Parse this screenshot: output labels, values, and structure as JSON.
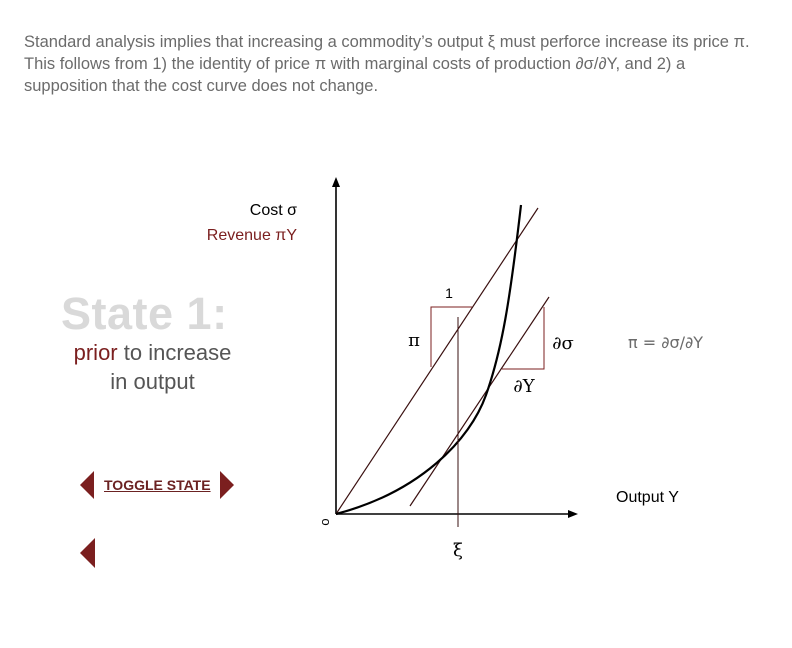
{
  "intro": {
    "text": "Standard analysis implies that increasing a commodity’s output ξ must perforce increase its price π. This follows from 1) the identity of price π with marginal costs of production ∂σ/∂Y, and 2) a supposition that the cost curve does not change."
  },
  "state": {
    "title": "State 1:",
    "desc_accent": "prior",
    "desc_rest_1": " to increase",
    "desc_rest_2": "in output"
  },
  "controls": {
    "toggle_label": "TOGGLE STATE",
    "prev_icon": "triangle-left-icon",
    "next_icon": "triangle-right-icon",
    "back_icon": "triangle-left-icon"
  },
  "diagram": {
    "y_axis_label_1": "Cost σ",
    "y_axis_label_2": "Revenue πY",
    "x_axis_label": "Output Y",
    "origin_label": "o",
    "xi_label": "ξ",
    "pi_label": "π",
    "one_label": "1",
    "dsigma_label": "∂σ",
    "dy_label": "∂Y",
    "equation": "π = ∂σ/∂Y"
  },
  "colors": {
    "accent": "#7b1f1f",
    "line": "#3a1010",
    "text_gray": "#6b6b6b"
  }
}
